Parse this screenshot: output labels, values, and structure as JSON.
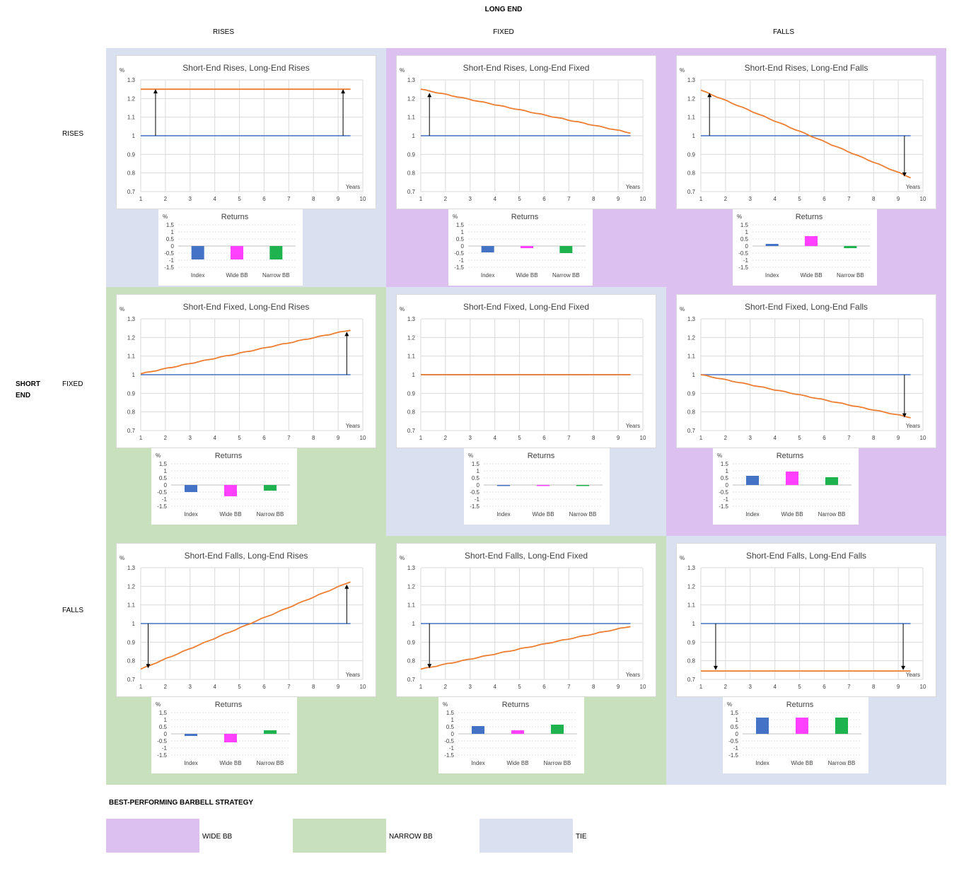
{
  "header": {
    "long_end_title": "LONG END",
    "short_end_title_line1": "SHORT",
    "short_end_title_line2": "END",
    "columns": [
      "RISES",
      "FIXED",
      "FALLS"
    ],
    "rows": [
      "RISES",
      "FIXED",
      "FALLS"
    ]
  },
  "colors": {
    "wide_bb": "#dcc0f0",
    "narrow_bb": "#c8e0bc",
    "tie": "#d9e0f0",
    "index_bar": "#4472c4",
    "wide_bar": "#ff40ff",
    "narrow_bar": "#1fb34f",
    "base_line": "#4472c4",
    "curve_line": "#ed7d31"
  },
  "legend": {
    "title": "BEST-PERFORMING BARBELL STRATEGY",
    "items": [
      {
        "label": "WIDE BB",
        "color": "#dcc0f0"
      },
      {
        "label": "NARROW BB",
        "color": "#c8e0bc"
      },
      {
        "label": "TIE",
        "color": "#d9e0f0"
      }
    ]
  },
  "chart_data": [
    {
      "type": "line",
      "title": "Short-End Rises, Long-End Rises",
      "unit": "%",
      "xlabel": "Years",
      "x_ticks": [
        "1",
        "2",
        "3",
        "4",
        "5",
        "6",
        "7",
        "8",
        "9",
        "10"
      ],
      "y_ticks": [
        "0.7",
        "0.8",
        "0.9",
        "1",
        "1.1",
        "1.2",
        "1.3"
      ],
      "ylim": [
        0.7,
        1.3
      ],
      "xlim": [
        1,
        10
      ],
      "base": 1.0,
      "curve_start": 1.25,
      "curve_end": 1.25,
      "curve_shape": "flat",
      "arrows": [
        {
          "x": 1.6,
          "from": 1.0,
          "to": 1.25
        },
        {
          "x": 9.2,
          "from": 1.0,
          "to": 1.25
        }
      ],
      "best": "tie",
      "returns": {
        "title": "Returns",
        "unit": "%",
        "categories": [
          "Index",
          "Wide BB",
          "Narrow BB"
        ],
        "values": [
          -0.95,
          -0.95,
          -0.95
        ],
        "y_ticks": [
          "1.5",
          "1",
          "0.5",
          "0",
          "-0.5",
          "-1",
          "-1.5"
        ],
        "ylim": [
          -1.5,
          1.5
        ]
      }
    },
    {
      "type": "line",
      "title": "Short-End Rises, Long-End Fixed",
      "unit": "%",
      "xlabel": "Years",
      "x_ticks": [
        "1",
        "2",
        "3",
        "4",
        "5",
        "6",
        "7",
        "8",
        "9",
        "10"
      ],
      "y_ticks": [
        "0.7",
        "0.8",
        "0.9",
        "1",
        "1.1",
        "1.2",
        "1.3"
      ],
      "ylim": [
        0.7,
        1.3
      ],
      "xlim": [
        1,
        10
      ],
      "base": 1.0,
      "curve_start": 1.25,
      "curve_end": 1.015,
      "curve_shape": "linear",
      "arrows": [
        {
          "x": 1.35,
          "from": 1.0,
          "to": 1.23
        }
      ],
      "best": "wide",
      "returns": {
        "title": "Returns",
        "unit": "%",
        "categories": [
          "Index",
          "Wide BB",
          "Narrow BB"
        ],
        "values": [
          -0.45,
          -0.15,
          -0.5
        ],
        "y_ticks": [
          "1.5",
          "1",
          "0.5",
          "0",
          "-0.5",
          "-1",
          "-1.5"
        ],
        "ylim": [
          -1.5,
          1.5
        ]
      }
    },
    {
      "type": "line",
      "title": "Short-End Rises, Long-End Falls",
      "unit": "%",
      "xlabel": "Years",
      "x_ticks": [
        "1",
        "2",
        "3",
        "4",
        "5",
        "6",
        "7",
        "8",
        "9",
        "10"
      ],
      "y_ticks": [
        "0.7",
        "0.8",
        "0.9",
        "1",
        "1.1",
        "1.2",
        "1.3"
      ],
      "ylim": [
        0.7,
        1.3
      ],
      "xlim": [
        1,
        10
      ],
      "base": 1.0,
      "curve_start": 1.245,
      "curve_end": 0.775,
      "curve_shape": "linear",
      "arrows": [
        {
          "x": 1.35,
          "from": 1.0,
          "to": 1.23
        },
        {
          "x": 9.25,
          "from": 1.0,
          "to": 0.78
        }
      ],
      "best": "wide",
      "returns": {
        "title": "Returns",
        "unit": "%",
        "categories": [
          "Index",
          "Wide BB",
          "Narrow BB"
        ],
        "values": [
          0.15,
          0.7,
          -0.15
        ],
        "y_ticks": [
          "1.5",
          "1",
          "0.5",
          "0",
          "-0.5",
          "-1",
          "-1.5"
        ],
        "ylim": [
          -1.5,
          1.5
        ]
      }
    },
    {
      "type": "line",
      "title": "Short-End Fixed, Long-End Rises",
      "unit": "%",
      "xlabel": "Years",
      "x_ticks": [
        "1",
        "2",
        "3",
        "4",
        "5",
        "6",
        "7",
        "8",
        "9",
        "10"
      ],
      "y_ticks": [
        "0.7",
        "0.8",
        "0.9",
        "1",
        "1.1",
        "1.2",
        "1.3"
      ],
      "ylim": [
        0.7,
        1.3
      ],
      "xlim": [
        1,
        10
      ],
      "base": 1.0,
      "curve_start": 1.005,
      "curve_end": 1.24,
      "curve_shape": "linear",
      "arrows": [
        {
          "x": 9.35,
          "from": 1.0,
          "to": 1.23
        }
      ],
      "best": "narrow",
      "returns": {
        "title": "Returns",
        "unit": "%",
        "categories": [
          "Index",
          "Wide BB",
          "Narrow BB"
        ],
        "values": [
          -0.5,
          -0.8,
          -0.4
        ],
        "y_ticks": [
          "1.5",
          "1",
          "0.5",
          "0",
          "-0.5",
          "-1",
          "-1.5"
        ],
        "ylim": [
          -1.5,
          1.5
        ]
      }
    },
    {
      "type": "line",
      "title": "Short-End Fixed, Long-End Fixed",
      "unit": "%",
      "xlabel": "Years",
      "x_ticks": [
        "1",
        "2",
        "3",
        "4",
        "5",
        "6",
        "7",
        "8",
        "9",
        "10"
      ],
      "y_ticks": [
        "0.7",
        "0.8",
        "0.9",
        "1",
        "1.1",
        "1.2",
        "1.3"
      ],
      "ylim": [
        0.7,
        1.3
      ],
      "xlim": [
        1,
        10
      ],
      "base": 1.0,
      "curve_start": 1.0,
      "curve_end": 1.0,
      "curve_shape": "flat",
      "arrows": [],
      "best": "tie",
      "returns": {
        "title": "Returns",
        "unit": "%",
        "categories": [
          "Index",
          "Wide BB",
          "Narrow BB"
        ],
        "values": [
          -0.05,
          -0.05,
          -0.05
        ],
        "y_ticks": [
          "1.5",
          "1",
          "0.5",
          "0",
          "-0.5",
          "-1",
          "-1.5"
        ],
        "ylim": [
          -1.5,
          1.5
        ]
      }
    },
    {
      "type": "line",
      "title": "Short-End Fixed, Long-End Falls",
      "unit": "%",
      "xlabel": "Years",
      "x_ticks": [
        "1",
        "2",
        "3",
        "4",
        "5",
        "6",
        "7",
        "8",
        "9",
        "10"
      ],
      "y_ticks": [
        "0.7",
        "0.8",
        "0.9",
        "1",
        "1.1",
        "1.2",
        "1.3"
      ],
      "ylim": [
        0.7,
        1.3
      ],
      "xlim": [
        1,
        10
      ],
      "base": 1.0,
      "curve_start": 1.0,
      "curve_end": 0.77,
      "curve_shape": "linear",
      "arrows": [
        {
          "x": 9.25,
          "from": 1.0,
          "to": 0.77
        }
      ],
      "best": "wide",
      "returns": {
        "title": "Returns",
        "unit": "%",
        "categories": [
          "Index",
          "Wide BB",
          "Narrow BB"
        ],
        "values": [
          0.65,
          0.95,
          0.55
        ],
        "y_ticks": [
          "1.5",
          "1",
          "0.5",
          "0",
          "-0.5",
          "-1",
          "-1.5"
        ],
        "ylim": [
          -1.5,
          1.5
        ]
      }
    },
    {
      "type": "line",
      "title": "Short-End Falls, Long-End Rises",
      "unit": "%",
      "xlabel": "Years",
      "x_ticks": [
        "1",
        "2",
        "3",
        "4",
        "5",
        "6",
        "7",
        "8",
        "9",
        "10"
      ],
      "y_ticks": [
        "0.7",
        "0.8",
        "0.9",
        "1",
        "1.1",
        "1.2",
        "1.3"
      ],
      "ylim": [
        0.7,
        1.3
      ],
      "xlim": [
        1,
        10
      ],
      "base": 1.0,
      "curve_start": 0.755,
      "curve_end": 1.225,
      "curve_shape": "linear",
      "arrows": [
        {
          "x": 1.3,
          "from": 1.0,
          "to": 0.76
        },
        {
          "x": 9.35,
          "from": 1.0,
          "to": 1.21
        }
      ],
      "best": "narrow",
      "returns": {
        "title": "Returns",
        "unit": "%",
        "categories": [
          "Index",
          "Wide BB",
          "Narrow BB"
        ],
        "values": [
          -0.15,
          -0.6,
          0.25
        ],
        "y_ticks": [
          "1.5",
          "1",
          "0.5",
          "0",
          "-0.5",
          "-1",
          "-1.5"
        ],
        "ylim": [
          -1.5,
          1.5
        ]
      }
    },
    {
      "type": "line",
      "title": "Short-End Falls, Long-End Fixed",
      "unit": "%",
      "xlabel": "Years",
      "x_ticks": [
        "1",
        "2",
        "3",
        "4",
        "5",
        "6",
        "7",
        "8",
        "9",
        "10"
      ],
      "y_ticks": [
        "0.7",
        "0.8",
        "0.9",
        "1",
        "1.1",
        "1.2",
        "1.3"
      ],
      "ylim": [
        0.7,
        1.3
      ],
      "xlim": [
        1,
        10
      ],
      "base": 1.0,
      "curve_start": 0.755,
      "curve_end": 0.985,
      "curve_shape": "linear",
      "arrows": [
        {
          "x": 1.35,
          "from": 1.0,
          "to": 0.76
        }
      ],
      "best": "narrow",
      "returns": {
        "title": "Returns",
        "unit": "%",
        "categories": [
          "Index",
          "Wide BB",
          "Narrow BB"
        ],
        "values": [
          0.55,
          0.25,
          0.65
        ],
        "y_ticks": [
          "1.5",
          "1",
          "0.5",
          "0",
          "-0.5",
          "-1",
          "-1.5"
        ],
        "ylim": [
          -1.5,
          1.5
        ]
      }
    },
    {
      "type": "line",
      "title": "Short-End Falls, Long-End Falls",
      "unit": "%",
      "xlabel": "Years",
      "x_ticks": [
        "1",
        "2",
        "3",
        "4",
        "5",
        "6",
        "7",
        "8",
        "9",
        "10"
      ],
      "y_ticks": [
        "0.7",
        "0.8",
        "0.9",
        "1",
        "1.1",
        "1.2",
        "1.3"
      ],
      "ylim": [
        0.7,
        1.3
      ],
      "xlim": [
        1,
        10
      ],
      "base": 1.0,
      "curve_start": 0.745,
      "curve_end": 0.745,
      "curve_shape": "flat",
      "arrows": [
        {
          "x": 1.6,
          "from": 1.0,
          "to": 0.75
        },
        {
          "x": 9.2,
          "from": 1.0,
          "to": 0.75
        }
      ],
      "best": "tie",
      "returns": {
        "title": "Returns",
        "unit": "%",
        "categories": [
          "Index",
          "Wide BB",
          "Narrow BB"
        ],
        "values": [
          1.15,
          1.15,
          1.15
        ],
        "y_ticks": [
          "1.5",
          "1",
          "0.5",
          "0",
          "-0.5",
          "-1",
          "-1.5"
        ],
        "ylim": [
          -1.5,
          1.5
        ]
      }
    }
  ]
}
